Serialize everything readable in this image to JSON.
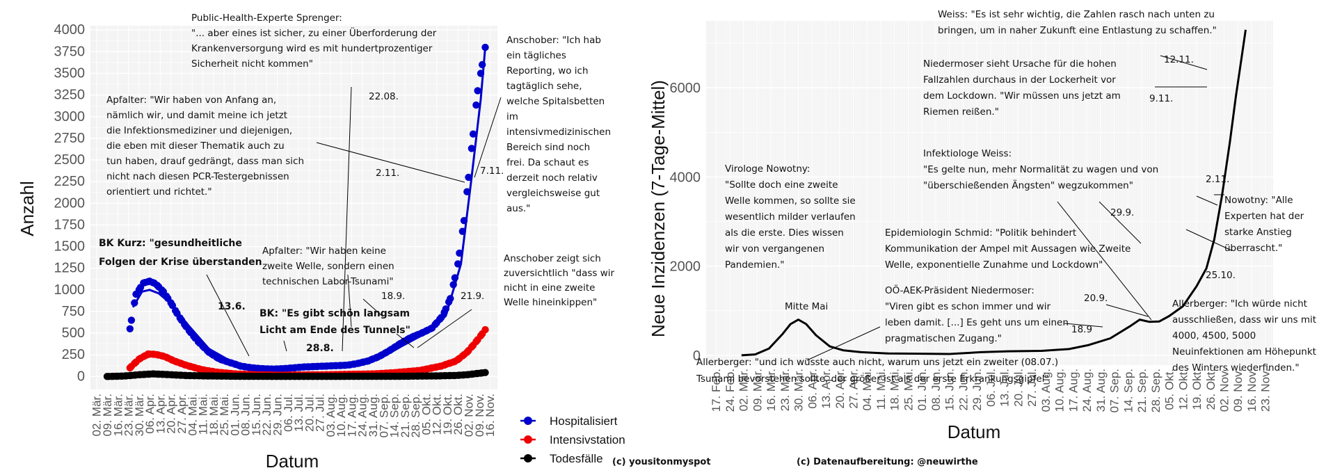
{
  "credits": {
    "left": "(c) yousitonmyspot",
    "right": "(c) Datenaufbereitung: @neuwirthe"
  },
  "chart_data": [
    {
      "type": "scatter",
      "ylabel": "Anzahl",
      "xlabel": "Datum",
      "ylim": [
        0,
        4000
      ],
      "y_ticks": [
        0,
        250,
        500,
        750,
        1000,
        1250,
        1500,
        1750,
        2000,
        2250,
        2500,
        2750,
        3000,
        3250,
        3500,
        3750,
        4000
      ],
      "x_tick_labels": [
        "02. Mär.",
        "09. Mär.",
        "16. Mär.",
        "23. Mär.",
        "30. Mär.",
        "06. Apr.",
        "13. Apr.",
        "20. Apr.",
        "27. Apr.",
        "04. Mai.",
        "11. Mai.",
        "18. Mai.",
        "25. Mai.",
        "01. Jun.",
        "08. Jun.",
        "15. Jun.",
        "22. Jun.",
        "29. Jun.",
        "06. Jul.",
        "13. Jul.",
        "20. Jul.",
        "27. Jul.",
        "03. Aug.",
        "10. Aug.",
        "17. Aug.",
        "24. Aug.",
        "31. Aug.",
        "07. Sep.",
        "14. Sep.",
        "21. Sep.",
        "28. Sep.",
        "05. Okt.",
        "12. Okt.",
        "19. Okt.",
        "26. Okt.",
        "02. Nov.",
        "09. Nov.",
        "16. Nov."
      ],
      "legend_position": "right",
      "grid": true,
      "series": [
        {
          "name": "Hospitalisiert",
          "color": "#0000cc",
          "x": [
            "2020-03-24",
            "2020-03-28",
            "2020-04-02",
            "2020-04-06",
            "2020-04-10",
            "2020-04-15",
            "2020-04-20",
            "2020-04-25",
            "2020-05-01",
            "2020-05-08",
            "2020-05-15",
            "2020-05-22",
            "2020-05-29",
            "2020-06-05",
            "2020-06-12",
            "2020-06-19",
            "2020-06-26",
            "2020-07-03",
            "2020-07-10",
            "2020-07-17",
            "2020-07-24",
            "2020-07-31",
            "2020-08-07",
            "2020-08-14",
            "2020-08-21",
            "2020-08-28",
            "2020-09-04",
            "2020-09-11",
            "2020-09-18",
            "2020-09-25",
            "2020-10-02",
            "2020-10-09",
            "2020-10-16",
            "2020-10-21",
            "2020-10-26",
            "2020-10-30",
            "2020-11-02",
            "2020-11-05",
            "2020-11-08",
            "2020-11-11",
            "2020-11-13"
          ],
          "y": [
            550,
            950,
            1080,
            1100,
            1070,
            980,
            850,
            700,
            550,
            400,
            280,
            200,
            160,
            120,
            100,
            90,
            85,
            90,
            100,
            110,
            115,
            120,
            125,
            130,
            150,
            180,
            230,
            300,
            380,
            450,
            500,
            560,
            700,
            900,
            1300,
            1800,
            2300,
            2800,
            3300,
            3600,
            3800
          ]
        },
        {
          "name": "Intensivstation",
          "color": "#ee0000",
          "x": [
            "2020-03-24",
            "2020-03-30",
            "2020-04-05",
            "2020-04-10",
            "2020-04-16",
            "2020-04-22",
            "2020-04-30",
            "2020-05-10",
            "2020-05-20",
            "2020-06-01",
            "2020-06-15",
            "2020-07-01",
            "2020-07-15",
            "2020-08-01",
            "2020-08-15",
            "2020-09-01",
            "2020-09-15",
            "2020-10-01",
            "2020-10-15",
            "2020-10-25",
            "2020-11-01",
            "2020-11-06",
            "2020-11-10",
            "2020-11-13"
          ],
          "y": [
            100,
            200,
            260,
            255,
            230,
            180,
            130,
            80,
            50,
            30,
            20,
            15,
            18,
            20,
            25,
            30,
            45,
            70,
            120,
            180,
            280,
            380,
            470,
            540
          ]
        },
        {
          "name": "Todesfälle",
          "color": "#000000",
          "x": [
            "2020-03-09",
            "2020-03-20",
            "2020-03-30",
            "2020-04-08",
            "2020-04-20",
            "2020-05-01",
            "2020-05-20",
            "2020-06-10",
            "2020-07-01",
            "2020-08-01",
            "2020-09-01",
            "2020-09-20",
            "2020-10-10",
            "2020-10-25",
            "2020-11-01",
            "2020-11-08",
            "2020-11-13"
          ],
          "y": [
            0,
            5,
            20,
            30,
            20,
            10,
            5,
            2,
            1,
            1,
            2,
            3,
            6,
            12,
            20,
            35,
            45
          ]
        }
      ],
      "smooth_series": [
        {
          "name": "Hospitalisiert",
          "color": "#0000cc",
          "x": [
            "2020-03-26",
            "2020-04-01",
            "2020-04-06",
            "2020-04-12",
            "2020-04-20",
            "2020-05-01",
            "2020-05-15",
            "2020-06-01",
            "2020-06-20",
            "2020-07-10",
            "2020-08-01",
            "2020-08-20",
            "2020-09-05",
            "2020-09-20",
            "2020-10-05",
            "2020-10-18",
            "2020-10-28",
            "2020-11-04",
            "2020-11-10",
            "2020-11-13"
          ],
          "y": [
            800,
            980,
            1000,
            960,
            840,
            600,
            320,
            150,
            95,
            100,
            115,
            140,
            210,
            360,
            500,
            700,
            1300,
            2300,
            3200,
            3800
          ]
        },
        {
          "name": "Intensivstation",
          "color": "#ee0000",
          "x": [
            "2020-03-28",
            "2020-04-08",
            "2020-04-20",
            "2020-05-10",
            "2020-06-10",
            "2020-07-15",
            "2020-08-20",
            "2020-09-20",
            "2020-10-15",
            "2020-11-01",
            "2020-11-13"
          ],
          "y": [
            180,
            240,
            190,
            80,
            25,
            17,
            25,
            50,
            120,
            280,
            540
          ]
        },
        {
          "name": "Todesfälle",
          "color": "#000000",
          "x": [
            "2020-03-15",
            "2020-04-08",
            "2020-05-15",
            "2020-07-01",
            "2020-09-01",
            "2020-10-20",
            "2020-11-13"
          ],
          "y": [
            5,
            25,
            6,
            1,
            2,
            10,
            45
          ]
        }
      ],
      "annotations": [
        {
          "id": "sprenger",
          "lines": [
            "Public-Health-Experte Sprenger:",
            "\"... aber eines ist sicher, zu einer Überforderung der",
            "Krankenversorgung wird es mit hundertprozentiger",
            "Sicherheit nicht kommen\""
          ]
        },
        {
          "id": "sprenger_date",
          "lines": [
            "22.08."
          ]
        },
        {
          "id": "apfalter1",
          "lines": [
            "Apfalter: \"Wir haben von Anfang an,",
            "nämlich wir, und damit meine ich jetzt",
            "die Infektionsmediziner und diejenigen,",
            "die eben mit dieser Thematik auch zu",
            "tun haben, drauf gedrängt, dass man sich",
            "nicht nach diesen PCR-Testergebnissen",
            "orientiert und richtet.\""
          ]
        },
        {
          "id": "apfalter1_date",
          "lines": [
            "2.11."
          ]
        },
        {
          "id": "anschober1",
          "lines": [
            "Anschober: \"Ich hab",
            "ein tägliches",
            "Reporting, wo ich",
            "tagtäglich sehe,",
            "welche Spitalsbetten",
            "im",
            "intensivmedizinischen",
            "Bereich sind noch",
            "frei. Da schaut es",
            "derzeit noch relativ",
            "vergleichsweise gut",
            "aus.\""
          ]
        },
        {
          "id": "anschober1_date",
          "lines": [
            "7.11."
          ]
        },
        {
          "id": "kurz",
          "bold": true,
          "lines": [
            "BK Kurz: \"gesundheitliche",
            "Folgen der Krise überstanden"
          ]
        },
        {
          "id": "kurz_date",
          "bold": true,
          "lines": [
            "13.6."
          ]
        },
        {
          "id": "apfalter2",
          "lines": [
            "Apfalter: \"Wir haben keine",
            "zweite Welle, sondern einen",
            "technischen Labor-Tsunami\""
          ]
        },
        {
          "id": "apfalter2_date",
          "lines": [
            "18.9."
          ]
        },
        {
          "id": "bk",
          "bold": true,
          "lines": [
            "BK: \"Es gibt schön langsam",
            "Licht am Ende des Tunnels\""
          ]
        },
        {
          "id": "bk_date",
          "bold": true,
          "lines": [
            "28.8."
          ]
        },
        {
          "id": "anschober2",
          "lines": [
            "Anschober zeigt sich",
            "zuversichtlich \"dass wir",
            "nicht in eine zweite",
            "Welle hineinkippen\""
          ]
        },
        {
          "id": "anschober2_date",
          "lines": [
            "21.9."
          ]
        }
      ]
    },
    {
      "type": "line",
      "ylabel": "Neue Inzidenzen (7-Tage-Mittel)",
      "xlabel": "Datum",
      "ylim": [
        0,
        7500
      ],
      "y_ticks": [
        0,
        2000,
        4000,
        6000
      ],
      "x_tick_labels": [
        "17. Feb.",
        "24. Feb.",
        "02. Mär.",
        "09. Mär.",
        "16. Mär.",
        "23. Mär.",
        "30. Mär.",
        "06. Apr.",
        "13. Apr.",
        "20. Apr.",
        "27. Apr.",
        "04. Mai.",
        "11. Mai.",
        "18. Mai.",
        "25. Mai.",
        "01. Jun.",
        "08. Jun.",
        "15. Jun.",
        "22. Jun.",
        "29. Jun.",
        "06. Jul.",
        "13. Jul.",
        "20. Jul.",
        "27. Jul.",
        "03. Aug.",
        "10. Aug.",
        "17. Aug.",
        "24. Aug.",
        "31. Aug.",
        "07. Sep.",
        "14. Sep.",
        "21. Sep.",
        "28. Sep.",
        "05. Okt.",
        "12. Okt.",
        "19. Okt.",
        "26. Okt.",
        "02. Nov.",
        "09. Nov.",
        "16. Nov.",
        "23. Nov."
      ],
      "grid": true,
      "series": [
        {
          "name": "",
          "color": "#000000",
          "x": [
            "2020-03-01",
            "2020-03-08",
            "2020-03-15",
            "2020-03-22",
            "2020-03-26",
            "2020-03-30",
            "2020-04-03",
            "2020-04-08",
            "2020-04-15",
            "2020-04-22",
            "2020-05-01",
            "2020-05-15",
            "2020-06-01",
            "2020-06-15",
            "2020-07-01",
            "2020-07-15",
            "2020-08-01",
            "2020-08-15",
            "2020-08-25",
            "2020-09-05",
            "2020-09-15",
            "2020-09-20",
            "2020-09-25",
            "2020-09-30",
            "2020-10-05",
            "2020-10-12",
            "2020-10-19",
            "2020-10-24",
            "2020-10-28",
            "2020-11-01",
            "2020-11-05",
            "2020-11-08",
            "2020-11-11",
            "2020-11-13"
          ],
          "y": [
            0,
            20,
            150,
            480,
            700,
            800,
            700,
            450,
            200,
            110,
            70,
            40,
            35,
            30,
            70,
            90,
            100,
            140,
            230,
            380,
            650,
            800,
            750,
            760,
            880,
            1100,
            1550,
            1950,
            2600,
            3600,
            4800,
            5800,
            6700,
            7300
          ]
        }
      ],
      "annotations": [
        {
          "id": "weiss1",
          "lines": [
            "Weiss: \"Es ist sehr wichtig, die Zahlen rasch nach unten zu",
            "bringen, um in naher Zukunft eine Entlastung zu schaffen.\""
          ]
        },
        {
          "id": "weiss1_date",
          "lines": [
            "12.11."
          ]
        },
        {
          "id": "niedermoser1",
          "lines": [
            "Niedermoser sieht Ursache für die hohen",
            "Fallzahlen durchaus in der Lockerheit vor",
            "dem Lockdown. \"Wir müssen uns jetzt am",
            "Riemen reißen.\""
          ]
        },
        {
          "id": "niedermoser1_date",
          "lines": [
            "9.11."
          ]
        },
        {
          "id": "weiss2",
          "lines": [
            "Infektiologe Weiss:",
            "\"Es gelte nun, mehr Normalität zu wagen und von",
            "\"überschießenden Ängsten\" wegzukommen\""
          ]
        },
        {
          "id": "weiss2_date",
          "lines": [
            "29.9."
          ]
        },
        {
          "id": "nowotny1",
          "lines": [
            "Virologe Nowotny:",
            "\"Sollte doch eine zweite",
            "Welle kommen, so sollte sie",
            "wesentlich milder verlaufen",
            "als die erste. Dies wissen",
            "wir von vergangenen",
            "Pandemien.\""
          ]
        },
        {
          "id": "nowotny2",
          "lines": [
            "Nowotny: \"Alle",
            "Experten hat der",
            "starke Anstieg",
            "überrascht.\""
          ]
        },
        {
          "id": "nowotny2_date",
          "lines": [
            "2.11."
          ]
        },
        {
          "id": "schmid",
          "lines": [
            "Epidemiologin Schmid: \"Politik behindert",
            "Kommunikation der Ampel mit Aussagen wie Zweite",
            "Welle, exponentielle Zunahme und Lockdown\""
          ]
        },
        {
          "id": "schmid_date",
          "lines": [
            "20.9."
          ]
        },
        {
          "id": "mittemai",
          "lines": [
            "Mitte Mai"
          ]
        },
        {
          "id": "niedermoser2",
          "lines": [
            "OÖ-AEK-Präsident Niedermoser:",
            "\"Viren gibt es schon immer und wir",
            "leben damit. [...] Es geht uns um einen",
            "pragmatischen Zugang.\""
          ]
        },
        {
          "id": "niedermoser2_date",
          "lines": [
            "18.9"
          ]
        },
        {
          "id": "allerberger1",
          "lines": [
            "Allerberger: \"und ich wüsste auch nicht, warum uns jetzt ein zweiter  (08.07.)",
            "Tsunami bevorstehen sollte, der größer ist als der erste Erkrankungsgipfel\""
          ]
        },
        {
          "id": "allerberger2",
          "lines": [
            "Allerberger: \"Ich würde nicht",
            "ausschließen, dass wir uns mit",
            "4000, 4500, 5000",
            "Neuinfektionen am Höhepunkt",
            "des Winters wiederfinden.\""
          ]
        },
        {
          "id": "allerberger2_date",
          "lines": [
            "25.10."
          ]
        }
      ]
    }
  ]
}
